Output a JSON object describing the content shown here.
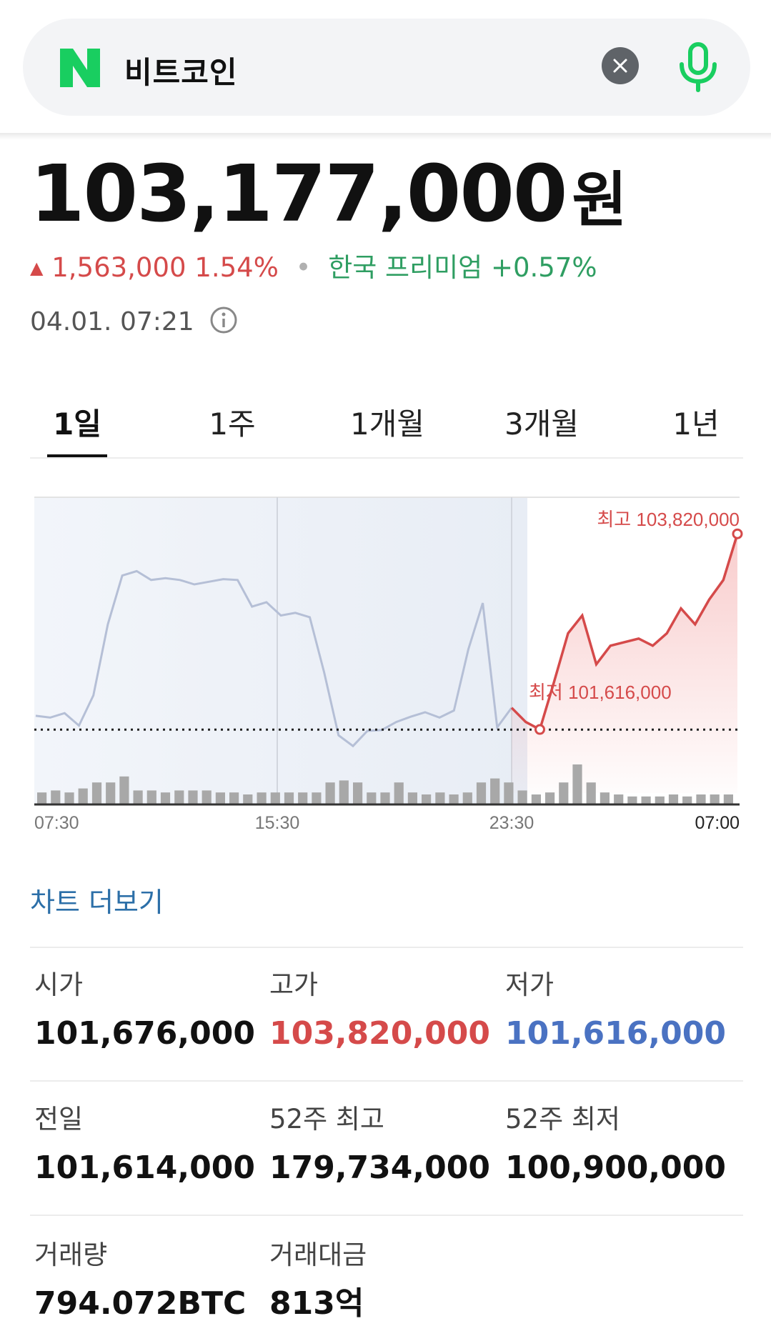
{
  "search": {
    "query": "비트코인"
  },
  "quote": {
    "price": "103,177,000",
    "unit": "원",
    "change": "1,563,000",
    "change_pct": "1.54%",
    "premium": "한국 프리미엄 +0.57%",
    "timestamp": "04.01. 07:21"
  },
  "tabs": [
    {
      "label": "1일",
      "active": true
    },
    {
      "label": "1주"
    },
    {
      "label": "1개월"
    },
    {
      "label": "3개월"
    },
    {
      "label": "1년"
    }
  ],
  "chart_data": {
    "type": "line",
    "title": "",
    "x_tick_labels": [
      "07:30",
      "15:30",
      "23:30",
      "07:00"
    ],
    "high_label": "최고 103,820,000",
    "low_label": "최저 101,616,000",
    "ylim": [
      100900000,
      104200000
    ],
    "reference_line": 101614000,
    "series": [
      {
        "values": [
          101770000,
          101750000,
          101800000,
          101660000,
          102000000,
          102800000,
          103350000,
          103400000,
          103300000,
          103320000,
          103300000,
          103250000,
          103280000,
          103310000,
          103300000,
          103000000,
          103050000,
          102900000,
          102930000,
          102880000,
          102260000,
          101550000,
          101430000,
          101600000,
          101610000,
          101700000,
          101760000,
          101810000,
          101750000,
          101830000,
          102520000,
          103040000,
          101640000,
          101860000
        ]
      },
      {
        "values": [
          101860000,
          101700000,
          101616000,
          102150000,
          102700000,
          102900000,
          102350000,
          102560000,
          102600000,
          102640000,
          102560000,
          102700000,
          102980000,
          102800000,
          103080000,
          103300000,
          103820000
        ]
      }
    ],
    "volume": [
      12,
      14,
      12,
      16,
      22,
      22,
      28,
      14,
      14,
      12,
      14,
      14,
      14,
      12,
      12,
      10,
      12,
      12,
      12,
      12,
      12,
      22,
      24,
      22,
      12,
      12,
      22,
      12,
      10,
      12,
      10,
      12,
      22,
      26,
      22,
      14,
      10,
      12,
      22,
      40,
      22,
      12,
      10,
      8,
      8,
      8,
      10,
      8,
      10,
      10,
      10
    ]
  },
  "more_chart_label": "차트 더보기",
  "stats": [
    {
      "label": "시가",
      "value": "101,676,000",
      "tone": "normal"
    },
    {
      "label": "고가",
      "value": "103,820,000",
      "tone": "high"
    },
    {
      "label": "저가",
      "value": "101,616,000",
      "tone": "low"
    },
    {
      "label": "전일",
      "value": "101,614,000",
      "tone": "normal"
    },
    {
      "label": "52주 최고",
      "value": "179,734,000",
      "tone": "normal"
    },
    {
      "label": "52주 최저",
      "value": "100,900,000",
      "tone": "normal"
    },
    {
      "label": "거래량",
      "value": "794.072BTC",
      "tone": "normal"
    },
    {
      "label": "거래대금",
      "value": "813억",
      "tone": "normal"
    }
  ],
  "colors": {
    "brand": "#19ce60",
    "up": "#d54a4a",
    "down": "#4a72c2",
    "premium": "#2f9e62",
    "link": "#2c6fa8"
  }
}
